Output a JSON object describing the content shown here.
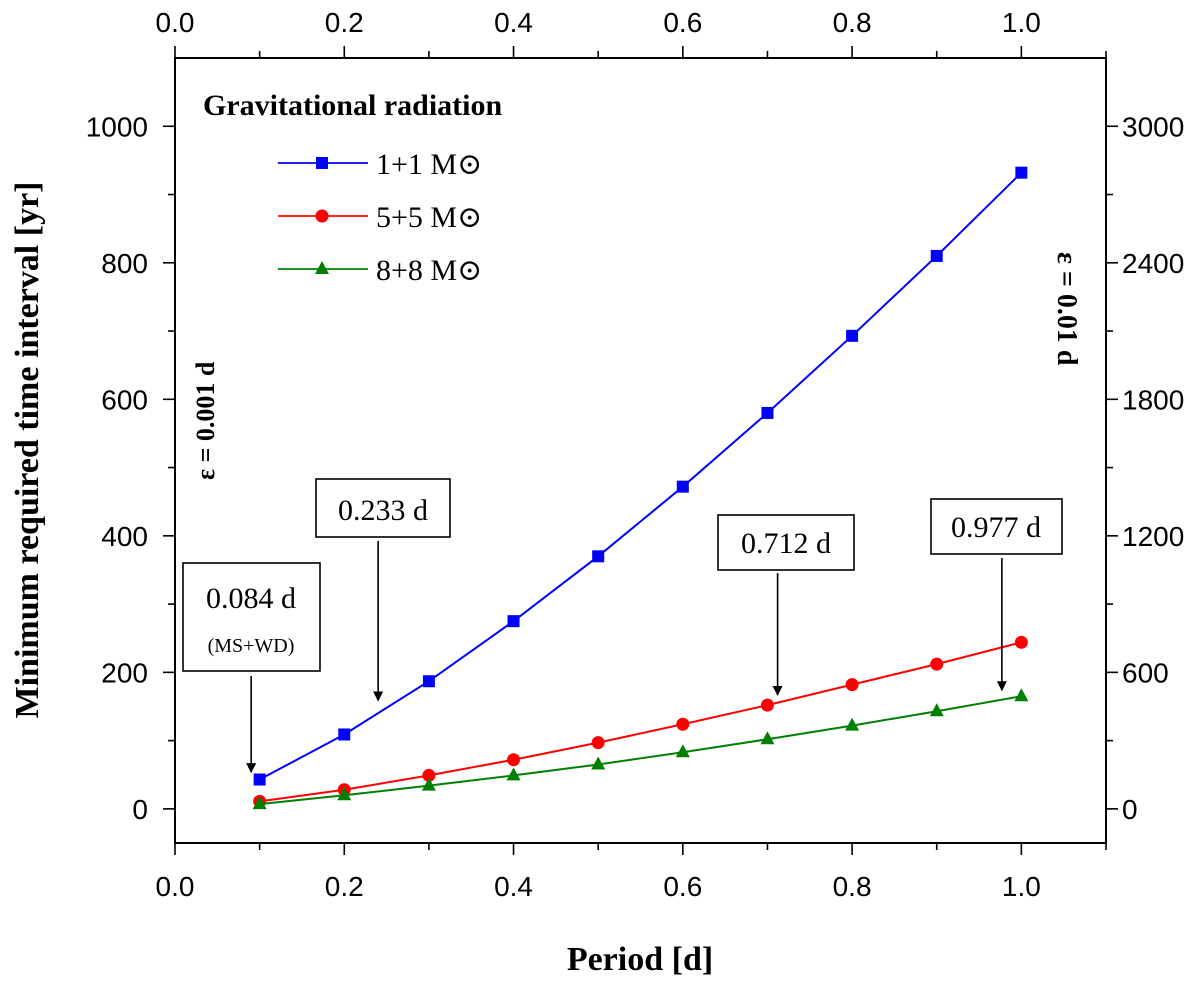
{
  "chart_data": {
    "type": "line",
    "title": "Gravitational radiation",
    "xlabel": "Period [d]",
    "ylabel": "Minimum required time interval [yr]",
    "ylabel_right": "ε = 0.01 d",
    "left_axis_annotation": "ε = 0.001 d",
    "xlim": [
      0.0,
      1.1
    ],
    "ylim": [
      -50,
      1100
    ],
    "ylim_right": [
      -150,
      3300
    ],
    "x_ticks": [
      "0.0",
      "0.2",
      "0.4",
      "0.6",
      "0.8",
      "1.0"
    ],
    "y_ticks": [
      "0",
      "200",
      "400",
      "600",
      "800",
      "1000"
    ],
    "y_ticks_right": [
      "0",
      "600",
      "1200",
      "1800",
      "2400",
      "3000"
    ],
    "x": [
      0.1,
      0.2,
      0.3,
      0.4,
      0.5,
      0.6,
      0.7,
      0.8,
      0.9,
      1.0
    ],
    "series": [
      {
        "name": "1+1 M⊙",
        "color": "#0000ff",
        "marker": "square",
        "values": [
          43,
          109,
          187,
          275,
          370,
          472,
          580,
          693,
          810,
          932
        ]
      },
      {
        "name": "5+5 M⊙",
        "color": "#ff0000",
        "marker": "circle",
        "values": [
          11,
          28,
          49,
          72,
          97,
          124,
          152,
          182,
          212,
          244
        ]
      },
      {
        "name": "8+8 M⊙",
        "color": "#008000",
        "marker": "triangle",
        "values": [
          7,
          20,
          34,
          49,
          65,
          83,
          102,
          122,
          143,
          165
        ]
      }
    ],
    "annotations": [
      {
        "label": "0.084 d",
        "sublabel": "(MS+WD)",
        "arrow_x": 0.09,
        "arrow_y": 45
      },
      {
        "label": "0.233 d",
        "arrow_x": 0.24,
        "arrow_y": 150
      },
      {
        "label": "0.712 d",
        "arrow_x": 0.712,
        "arrow_y": 158
      },
      {
        "label": "0.977 d",
        "arrow_x": 0.977,
        "arrow_y": 165
      }
    ],
    "legend_position": "top-left"
  }
}
